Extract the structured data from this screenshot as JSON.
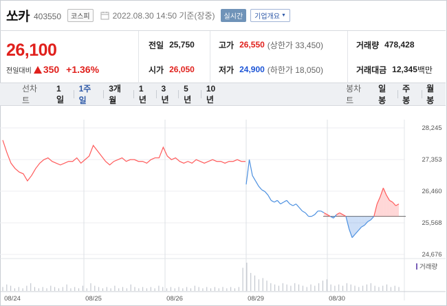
{
  "header": {
    "stock_name": "쏘카",
    "stock_code": "403550",
    "market": "코스피",
    "datetime": "2022.08.30 14:50",
    "basis": "기준(장중)",
    "realtime_label": "실시간",
    "company_info_label": "기업개요"
  },
  "price": {
    "current": "26,100",
    "change_label": "전일대비",
    "change_amount": "350",
    "change_pct": "+1.36%"
  },
  "stats": {
    "prev_close_label": "전일",
    "prev_close": "25,750",
    "open_label": "시가",
    "open": "26,050",
    "high_label": "고가",
    "high": "26,550",
    "upper_limit": "(상한가 33,450)",
    "low_label": "저가",
    "low": "24,900",
    "lower_limit": "(하한가 18,050)",
    "volume_label": "거래량",
    "volume": "478,428",
    "amount_label": "거래대금",
    "amount": "12,345",
    "amount_unit": "백만"
  },
  "tabs": {
    "line_label": "선차트",
    "items": [
      "1일",
      "1주일",
      "3개월",
      "1년",
      "3년",
      "5년",
      "10년"
    ],
    "active_index": 1,
    "candle_label": "봉차트",
    "candle_items": [
      "일봉",
      "주봉",
      "월봉"
    ]
  },
  "colors": {
    "up": "#e0201c",
    "down": "#1d55d6",
    "line_up": "#ff5a5a",
    "line_down": "#4a8fe0"
  },
  "chart_data": {
    "type": "line",
    "y_ticks": [
      "28,245",
      "27,353",
      "26,460",
      "25,568",
      "24,676"
    ],
    "ylim": [
      24676,
      28245
    ],
    "x_labels": [
      "08/24",
      "08/25",
      "08/26",
      "08/29",
      "08/30"
    ],
    "reference_price": 25750,
    "volume_label": "거래량",
    "series": [
      {
        "values": [
          27900,
          27550,
          27250,
          27100,
          27000,
          26950,
          26750,
          26900,
          27100,
          27250,
          27350,
          27400,
          27300,
          27250,
          27200,
          27250,
          27300,
          27300,
          27400,
          27250,
          27350,
          27450,
          27750,
          27600,
          27450,
          27300,
          27200,
          27300,
          27350,
          27400,
          27300,
          27350,
          27350,
          27300,
          27300,
          27250,
          27350,
          27400,
          27400,
          27700,
          27450,
          27350,
          27400,
          27300,
          27250,
          27300,
          27250,
          27350,
          27300,
          27250,
          27300,
          27350,
          27300,
          27300,
          27250,
          27300,
          27300,
          27350,
          27300,
          27300
        ]
      },
      {
        "values": [
          26650,
          27350,
          26900,
          26750,
          26600,
          26500,
          26450,
          26350,
          26200,
          26150,
          26200,
          26100,
          26150,
          26200,
          26100,
          26050,
          26100,
          26000,
          25900,
          25850,
          25750,
          25750,
          25800,
          25900,
          25900,
          25850,
          25800,
          25750,
          25700,
          25800,
          25850,
          25800,
          25750,
          25400,
          25150,
          25250,
          25350,
          25450,
          25500,
          25600,
          25650,
          25750,
          26100,
          26300,
          26550,
          26350,
          26200,
          26150,
          26050,
          26100
        ]
      }
    ],
    "volume_values": [
      3,
      5,
      4,
      2,
      3,
      2,
      4,
      6,
      3,
      2,
      3,
      2,
      4,
      3,
      2,
      3,
      5,
      2,
      3,
      2,
      4,
      2,
      6,
      4,
      3,
      2,
      3,
      2,
      4,
      2,
      3,
      2,
      5,
      3,
      2,
      3,
      2,
      3,
      2,
      4,
      3,
      2,
      3,
      2,
      3,
      2,
      3,
      2,
      4,
      3,
      2,
      3,
      2,
      3,
      2,
      3,
      2,
      3,
      2,
      3,
      18,
      22,
      14,
      12,
      9,
      10,
      8,
      6,
      5,
      4,
      6,
      5,
      4,
      6,
      5,
      4,
      3,
      5,
      4,
      6,
      8,
      9,
      5,
      4,
      5,
      4,
      6,
      5,
      4,
      3,
      4,
      5,
      6,
      4,
      3,
      4,
      5,
      3,
      4,
      3
    ]
  }
}
